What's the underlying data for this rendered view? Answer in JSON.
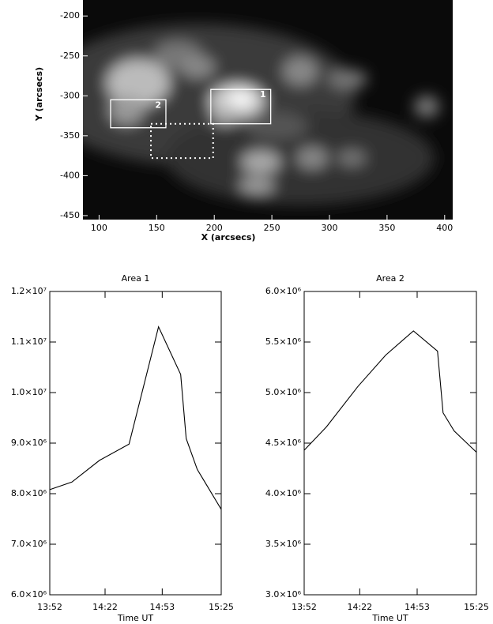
{
  "chart_data": [
    {
      "type": "image",
      "xlabel": "X (arcsecs)",
      "ylabel": "Y (arcsecs)",
      "xlim": [
        86,
        407
      ],
      "ylim": [
        -180,
        -455
      ],
      "xticks": [
        100,
        150,
        200,
        250,
        300,
        350,
        400
      ],
      "yticks": [
        -200,
        -250,
        -300,
        -350,
        -400,
        -450
      ],
      "regions": [
        {
          "label": "1",
          "x": [
            197,
            249
          ],
          "y": [
            -292,
            -335
          ],
          "style": "solid"
        },
        {
          "label": "2",
          "x": [
            110,
            158
          ],
          "y": [
            -305,
            -340
          ],
          "style": "solid"
        },
        {
          "x": [
            145,
            199
          ],
          "y": [
            -335,
            -378
          ],
          "style": "dotted"
        }
      ]
    },
    {
      "type": "line",
      "title": "Area 1",
      "xlabel": "Time UT",
      "color": "#000000",
      "x": [
        "13:52",
        "14:04",
        "14:19",
        "14:35",
        "14:51",
        "15:03",
        "15:06",
        "15:12",
        "15:25"
      ],
      "values": [
        8080000,
        8230000,
        8660000,
        8980000,
        11300000,
        10360000,
        9090000,
        8480000,
        7690000
      ],
      "xlim": [
        "13:52",
        "15:25"
      ],
      "xticks": [
        "13:52",
        "14:22",
        "14:53",
        "15:25"
      ],
      "ylim": [
        6000000,
        12000000
      ],
      "yticks": [
        {
          "value": 6000000,
          "label": "6.0×10⁶"
        },
        {
          "value": 7000000,
          "label": "7.0×10⁶"
        },
        {
          "value": 8000000,
          "label": "8.0×10⁶"
        },
        {
          "value": 9000000,
          "label": "9.0×10⁶"
        },
        {
          "value": 10000000,
          "label": "1.0×10⁷"
        },
        {
          "value": 11000000,
          "label": "1.1×10⁷"
        },
        {
          "value": 12000000,
          "label": "1.2×10⁷"
        }
      ]
    },
    {
      "type": "line",
      "title": "Area 2",
      "xlabel": "Time UT",
      "color": "#000000",
      "x": [
        "13:52",
        "14:04",
        "14:21",
        "14:36",
        "14:51",
        "15:04",
        "15:07",
        "15:13",
        "15:25"
      ],
      "values": [
        4430000,
        4660000,
        5060000,
        5370000,
        5610000,
        5410000,
        4800000,
        4620000,
        4410000
      ],
      "xlim": [
        "13:52",
        "15:25"
      ],
      "xticks": [
        "13:52",
        "14:22",
        "14:53",
        "15:25"
      ],
      "ylim": [
        3000000,
        6000000
      ],
      "yticks": [
        {
          "value": 3000000,
          "label": "3.0×10⁶"
        },
        {
          "value": 3500000,
          "label": "3.5×10⁶"
        },
        {
          "value": 4000000,
          "label": "4.0×10⁶"
        },
        {
          "value": 4500000,
          "label": "4.5×10⁶"
        },
        {
          "value": 5000000,
          "label": "5.0×10⁶"
        },
        {
          "value": 5500000,
          "label": "5.5×10⁶"
        },
        {
          "value": 6000000,
          "label": "6.0×10⁶"
        }
      ]
    }
  ]
}
